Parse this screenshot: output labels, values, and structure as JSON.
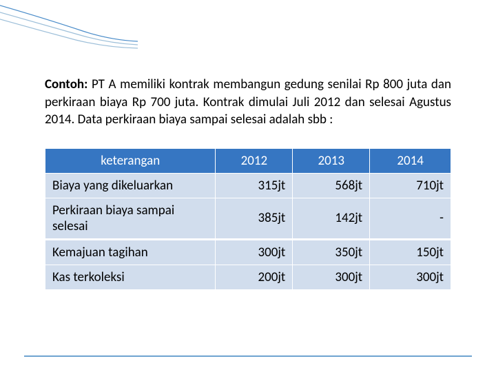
{
  "paragraph": {
    "label": "Contoh:",
    "body": " PT A memiliki kontrak membangun gedung senilai Rp 800 juta dan perkiraan biaya Rp 700 juta. Kontrak dimulai Juli 2012 dan selesai Agustus 2014. Data perkiraan biaya sampai selesai adalah sbb :"
  },
  "table": {
    "type": "table",
    "header_bg": "#3676c2",
    "header_text_color": "#ffffff",
    "body_bg": "#d1dded",
    "border_color": "#ffffff",
    "text_color": "#000000",
    "col_widths": [
      "42%",
      "19%",
      "19%",
      "20%"
    ],
    "columns": [
      "keterangan",
      "2012",
      "2013",
      "2014"
    ],
    "rows": [
      [
        "Biaya yang dikeluarkan",
        "315jt",
        "568jt",
        "710jt"
      ],
      [
        "Perkiraan biaya sampai selesai",
        "385jt",
        "142jt",
        "-"
      ],
      [
        "Kemajuan tagihan",
        "300jt",
        "350jt",
        "150jt"
      ],
      [
        "Kas terkoleksi",
        "200jt",
        "300jt",
        "300jt"
      ]
    ],
    "section_break_after_row": 1
  },
  "decoration": {
    "curve_color_1": "#4a8cc9",
    "curve_color_2": "#9dbfd9",
    "footer_line_color": "#6ea3d0"
  }
}
